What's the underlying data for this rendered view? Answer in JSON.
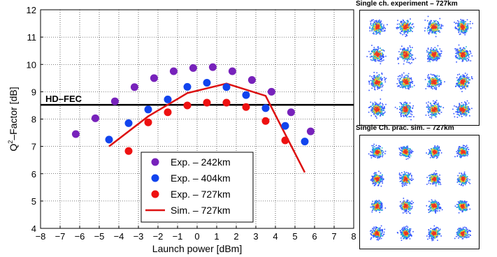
{
  "chart_data": {
    "type": "scatter",
    "xlabel": "Launch power [dBm]",
    "ylabel_main": "Q",
    "ylabel_sup": "2",
    "ylabel_rest": "–Factor [dB]",
    "xlim": [
      -8,
      8
    ],
    "ylim": [
      4,
      12
    ],
    "x_ticks": [
      "−8",
      "−7",
      "−6",
      "−5",
      "−4",
      "−3",
      "−2",
      "−1",
      "0",
      "1",
      "2",
      "3",
      "4",
      "5",
      "6",
      "7",
      "8"
    ],
    "y_ticks": [
      "4",
      "5",
      "6",
      "7",
      "8",
      "9",
      "10",
      "11",
      "12"
    ],
    "grid": true,
    "legend_position": "bottom-center",
    "threshold": {
      "label": "HD–FEC",
      "y": 8.52,
      "color": "#000000"
    },
    "series": [
      {
        "name": "Exp. – 242km",
        "kind": "scatter",
        "color": "#7722bb",
        "points": [
          [
            -6.2,
            7.45
          ],
          [
            -5.2,
            8.03
          ],
          [
            -4.2,
            8.65
          ],
          [
            -3.2,
            9.17
          ],
          [
            -2.2,
            9.5
          ],
          [
            -1.2,
            9.75
          ],
          [
            -0.2,
            9.87
          ],
          [
            0.8,
            9.9
          ],
          [
            1.8,
            9.75
          ],
          [
            2.8,
            9.43
          ],
          [
            3.8,
            9.0
          ],
          [
            4.8,
            8.25
          ],
          [
            5.8,
            7.55
          ]
        ]
      },
      {
        "name": "Exp. – 404km",
        "kind": "scatter",
        "color": "#1144ee",
        "points": [
          [
            -4.5,
            7.25
          ],
          [
            -3.5,
            7.85
          ],
          [
            -2.5,
            8.35
          ],
          [
            -1.5,
            8.72
          ],
          [
            -0.5,
            9.18
          ],
          [
            0.5,
            9.33
          ],
          [
            1.5,
            9.17
          ],
          [
            2.5,
            8.88
          ],
          [
            3.5,
            8.4
          ],
          [
            4.5,
            7.75
          ],
          [
            5.5,
            7.18
          ]
        ]
      },
      {
        "name": "Exp. – 727km",
        "kind": "scatter",
        "color": "#ee1111",
        "points": [
          [
            -3.5,
            6.83
          ],
          [
            -2.5,
            7.88
          ],
          [
            -1.5,
            8.25
          ],
          [
            -0.5,
            8.5
          ],
          [
            0.5,
            8.6
          ],
          [
            1.5,
            8.6
          ],
          [
            2.5,
            8.44
          ],
          [
            3.5,
            7.93
          ],
          [
            4.5,
            7.22
          ]
        ]
      },
      {
        "name": "Sim. – 727km",
        "kind": "line",
        "color": "#dd1111",
        "points": [
          [
            -4.5,
            7.0
          ],
          [
            -2.5,
            8.1
          ],
          [
            -0.5,
            8.95
          ],
          [
            1.5,
            9.3
          ],
          [
            3.5,
            8.85
          ],
          [
            5.5,
            6.05
          ]
        ]
      }
    ]
  },
  "panels": {
    "top": {
      "title": "Single ch. experiment – 727km"
    },
    "bottom": {
      "title": "Single Ch. prac. sim. – 727km"
    }
  }
}
